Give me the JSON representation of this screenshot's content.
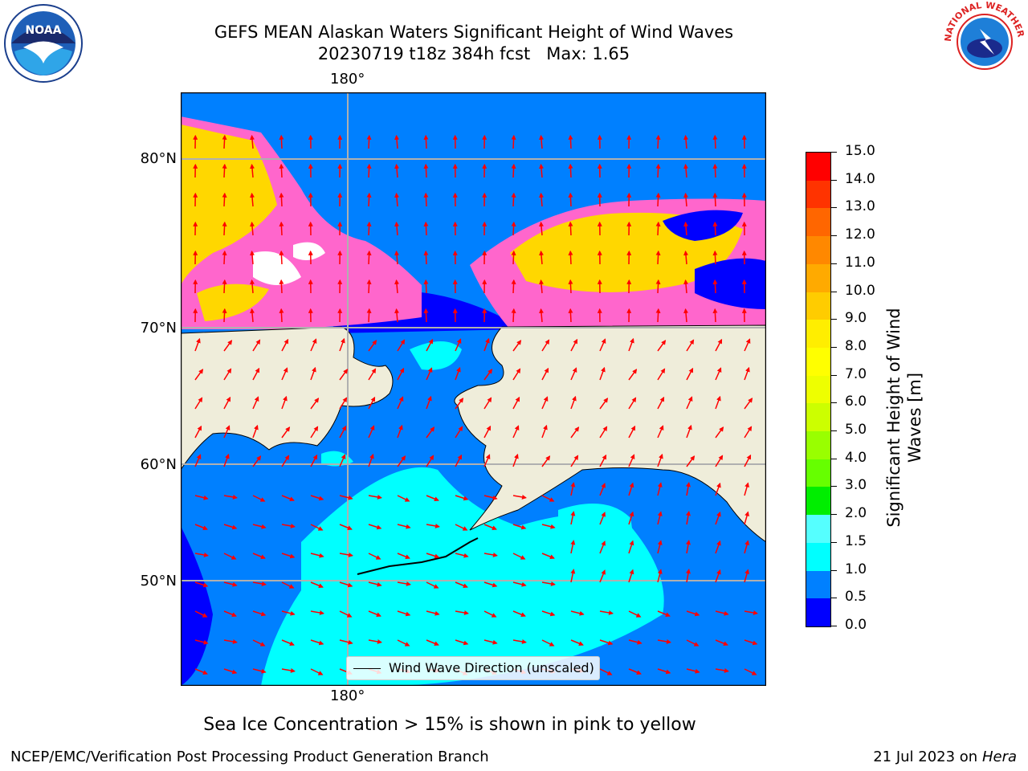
{
  "header": {
    "title_line1": "GEFS MEAN Alaskan Waters Significant Height of Wind Waves",
    "title_line2": "20230719 t18z 384h fcst   Max: 1.65"
  },
  "logos": {
    "left_text": "NOAA",
    "right_text": "NATIONAL WEATHER SERVICE"
  },
  "map": {
    "lon_labels": [
      "180°",
      "180°"
    ],
    "lat_labels": [
      "80°N",
      "70°N",
      "60°N",
      "50°N"
    ],
    "legend_label": "Wind Wave Direction (unscaled)",
    "colors": {
      "land": "#efedda",
      "ocean_low": "#0080ff",
      "ocean_mid": "#00ffff",
      "ice_pink": "#ff66cc",
      "ice_yellow": "#ffd700",
      "arrow": "#ff0000",
      "grid": "#b0b0b0"
    }
  },
  "colorbar": {
    "label": "Significant Height of Wind Waves [m]",
    "ticks": [
      "15.0",
      "14.0",
      "13.0",
      "12.0",
      "11.0",
      "10.0",
      "9.0",
      "8.0",
      "7.0",
      "6.0",
      "5.0",
      "4.0",
      "3.0",
      "2.0",
      "1.5",
      "1.0",
      "0.5",
      "0.0"
    ],
    "colors": [
      "#ff0000",
      "#ff3300",
      "#ff6600",
      "#ff8800",
      "#ffaa00",
      "#ffcc00",
      "#ffee00",
      "#ffff00",
      "#eeff00",
      "#ccff00",
      "#99ff00",
      "#66ff00",
      "#00ee00",
      "#55ff77",
      "#aaffff",
      "#55ffff",
      "#00ffff",
      "#0080ff",
      "#0000ff"
    ]
  },
  "subtitle": "Sea Ice Concentration > 15% is shown in pink to yellow",
  "footer": {
    "left": "NCEP/EMC/Verification Post Processing Product Generation Branch",
    "right_prefix": "21 Jul 2023 on ",
    "right_machine": "Hera"
  }
}
